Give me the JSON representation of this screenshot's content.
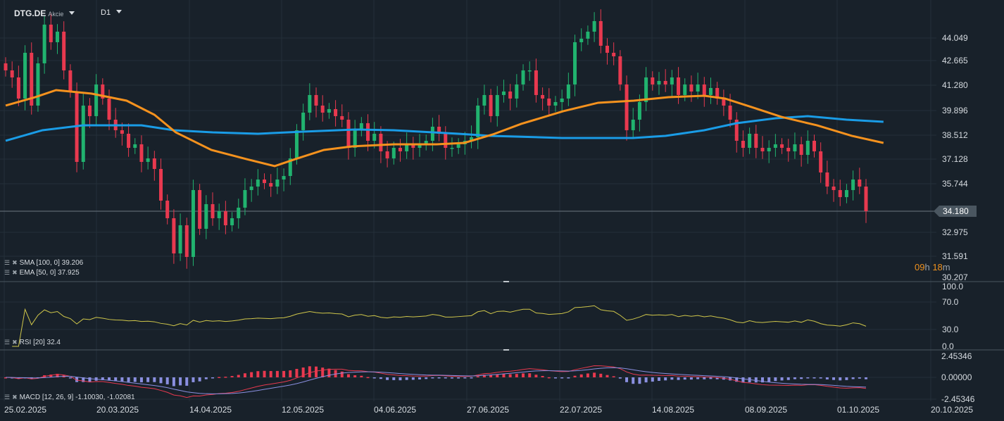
{
  "header": {
    "symbol": "DTG.DE",
    "type": "Akcie",
    "interval": "D1"
  },
  "timer": {
    "h": "09",
    "h_unit": "h",
    "m": "18",
    "m_unit": "m"
  },
  "current_price": "34.180",
  "legends": {
    "sma": "SMA [100,  0] 39.206",
    "ema": "EMA [50,  0] 37.925",
    "rsi": "RSI [20]  32.4",
    "macd": "MACD [12, 26, 9] -1.10030,  -1.02081"
  },
  "colors": {
    "up": "#21b36f",
    "down": "#e8394f",
    "sma": "#1a9ce6",
    "ema": "#f5921e",
    "rsi": "#cfc64a",
    "macd": "#e8394f",
    "signal": "#8a8fe0",
    "bg": "#18212a"
  },
  "chart_data": {
    "type": "candlestick",
    "price_axis": [
      "44.049",
      "42.665",
      "41.280",
      "39.896",
      "38.512",
      "37.128",
      "35.744",
      "32.975",
      "31.591",
      "30.207"
    ],
    "price_range": [
      30.207,
      44.049
    ],
    "rsi_axis": [
      "100.0",
      "70.0",
      "30.0",
      "0.0"
    ],
    "macd_axis": [
      "2.45346",
      "0.00000",
      "-2.45346"
    ],
    "dates": [
      "25.02.2025",
      "20.03.2025",
      "14.04.2025",
      "12.05.2025",
      "04.06.2025",
      "27.06.2025",
      "22.07.2025",
      "14.08.2025",
      "08.09.2025",
      "01.10.2025",
      "20.10.2025"
    ],
    "closes": [
      42.21,
      41.81,
      40.61,
      43.21,
      40.21,
      42.61,
      44.81,
      43.81,
      44.41,
      42.21,
      41.01,
      37.01,
      40.21,
      39.61,
      41.41,
      40.61,
      39.41,
      38.81,
      38.61,
      37.81,
      38.01,
      37.01,
      37.21,
      36.61,
      34.81,
      33.81,
      31.81,
      33.41,
      31.61,
      35.41,
      33.21,
      34.61,
      33.81,
      34.21,
      33.41,
      33.81,
      34.41,
      35.41,
      35.61,
      36.01,
      35.81,
      35.61,
      36.01,
      36.21,
      37.21,
      38.81,
      39.81,
      40.81,
      40.21,
      39.81,
      40.01,
      39.61,
      39.41,
      37.81,
      38.81,
      39.21,
      38.21,
      38.61,
      37.61,
      37.21,
      37.81,
      37.61,
      38.01,
      37.81,
      38.01,
      38.21,
      39.01,
      38.61,
      37.81,
      37.81,
      38.01,
      38.21,
      38.41,
      40.21,
      40.81,
      39.61,
      40.81,
      41.01,
      40.61,
      41.41,
      42.21,
      42.21,
      40.81,
      40.61,
      40.21,
      40.41,
      40.61,
      41.41,
      43.81,
      44.01,
      44.41,
      45.01,
      43.61,
      43.21,
      43.01,
      41.41,
      38.81,
      39.41,
      40.41,
      41.81,
      41.41,
      41.61,
      41.41,
      41.81,
      40.81,
      41.41,
      41.01,
      41.41,
      40.81,
      41.21,
      40.61,
      40.21,
      39.41,
      38.21,
      37.81,
      38.61,
      37.81,
      37.61,
      37.81,
      38.01,
      37.81,
      37.61,
      38.01,
      37.41,
      38.21,
      37.61,
      36.41,
      35.61,
      35.41,
      35.01,
      35.41,
      36.01,
      35.61,
      34.21
    ],
    "sma100": [
      [
        0,
        38.21
      ],
      [
        5.7,
        38.81
      ],
      [
        12,
        39.09
      ],
      [
        21,
        39.09
      ],
      [
        26,
        38.81
      ],
      [
        32,
        38.69
      ],
      [
        39,
        38.61
      ],
      [
        46,
        38.73
      ],
      [
        54,
        38.85
      ],
      [
        60,
        38.81
      ],
      [
        70,
        38.61
      ],
      [
        75,
        38.49
      ],
      [
        86,
        38.37
      ],
      [
        97,
        38.37
      ],
      [
        102,
        38.49
      ],
      [
        108,
        38.81
      ],
      [
        113,
        39.21
      ],
      [
        119,
        39.49
      ],
      [
        124,
        39.61
      ],
      [
        130,
        39.41
      ],
      [
        135.7,
        39.29
      ]
    ],
    "ema50": [
      [
        0,
        40.21
      ],
      [
        4.6,
        40.69
      ],
      [
        7.8,
        41.09
      ],
      [
        13.3,
        40.89
      ],
      [
        18.7,
        40.49
      ],
      [
        23,
        39.69
      ],
      [
        26.3,
        38.69
      ],
      [
        31.8,
        37.69
      ],
      [
        37.2,
        37.17
      ],
      [
        41.6,
        36.77
      ],
      [
        44.8,
        37.17
      ],
      [
        49.2,
        37.69
      ],
      [
        53.5,
        37.89
      ],
      [
        60,
        38.01
      ],
      [
        66.6,
        38.01
      ],
      [
        70.9,
        38.09
      ],
      [
        75.3,
        38.57
      ],
      [
        79.7,
        39.17
      ],
      [
        86.2,
        39.89
      ],
      [
        91.6,
        40.37
      ],
      [
        97.1,
        40.49
      ],
      [
        102.5,
        40.69
      ],
      [
        108,
        40.77
      ],
      [
        111.2,
        40.61
      ],
      [
        115.6,
        40.09
      ],
      [
        119.9,
        39.57
      ],
      [
        125.4,
        39.09
      ],
      [
        130.8,
        38.49
      ],
      [
        135.7,
        38.09
      ]
    ]
  }
}
